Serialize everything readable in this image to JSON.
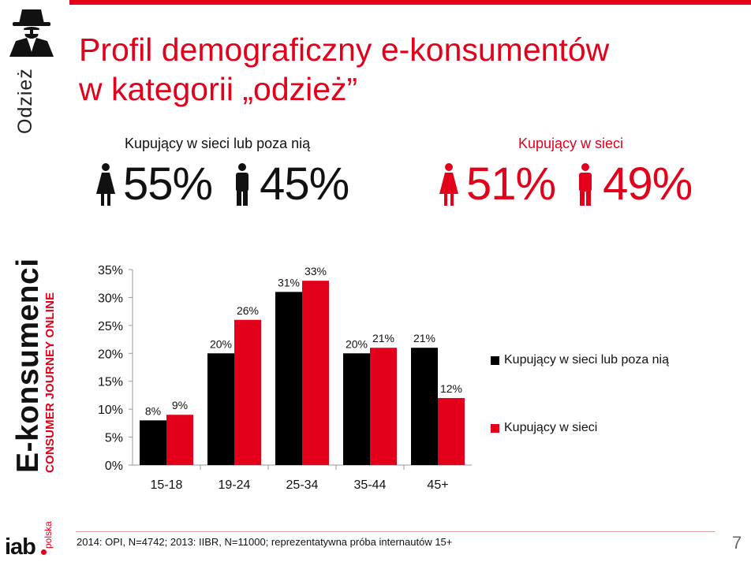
{
  "sidebar": {
    "category": "Odzież",
    "brand_title": "E-konsumenci",
    "brand_subtitle": "CONSUMER JOURNEY ONLINE",
    "logo": "iab",
    "logo_country": "polska"
  },
  "title": {
    "line1": "Profil demograficzny e-konsumentów",
    "line2": "w kategorii „odzież”"
  },
  "gender": {
    "all": {
      "label": "Kupujący w sieci lub poza nią",
      "female": "55%",
      "male": "45%"
    },
    "online": {
      "label": "Kupujący w sieci",
      "female": "51%",
      "male": "49%"
    }
  },
  "colors": {
    "accent": "#e2001a",
    "dark": "#000000"
  },
  "chart_data": {
    "type": "bar",
    "categories": [
      "15-18",
      "19-24",
      "25-34",
      "35-44",
      "45+"
    ],
    "series": [
      {
        "name": "Kupujący w sieci lub poza nią",
        "values": [
          8,
          20,
          31,
          20,
          21
        ],
        "labels": [
          "8%",
          "20%",
          "31%",
          "20%",
          "21%"
        ],
        "color": "#000000"
      },
      {
        "name": "Kupujący w sieci",
        "values": [
          9,
          26,
          33,
          21,
          12
        ],
        "labels": [
          "9%",
          "26%",
          "33%",
          "21%",
          "12%"
        ],
        "color": "#e2001a"
      }
    ],
    "ylim": [
      0,
      35
    ],
    "yticks": [
      "0%",
      "5%",
      "10%",
      "15%",
      "20%",
      "25%",
      "30%",
      "35%"
    ],
    "ytick_values": [
      0,
      5,
      10,
      15,
      20,
      25,
      30,
      35
    ],
    "legend_position": "right"
  },
  "footnote": "2014: OPI, N=4742; 2013: IIBR, N=11000; reprezentatywna próba internautów 15+",
  "page_number": "7"
}
